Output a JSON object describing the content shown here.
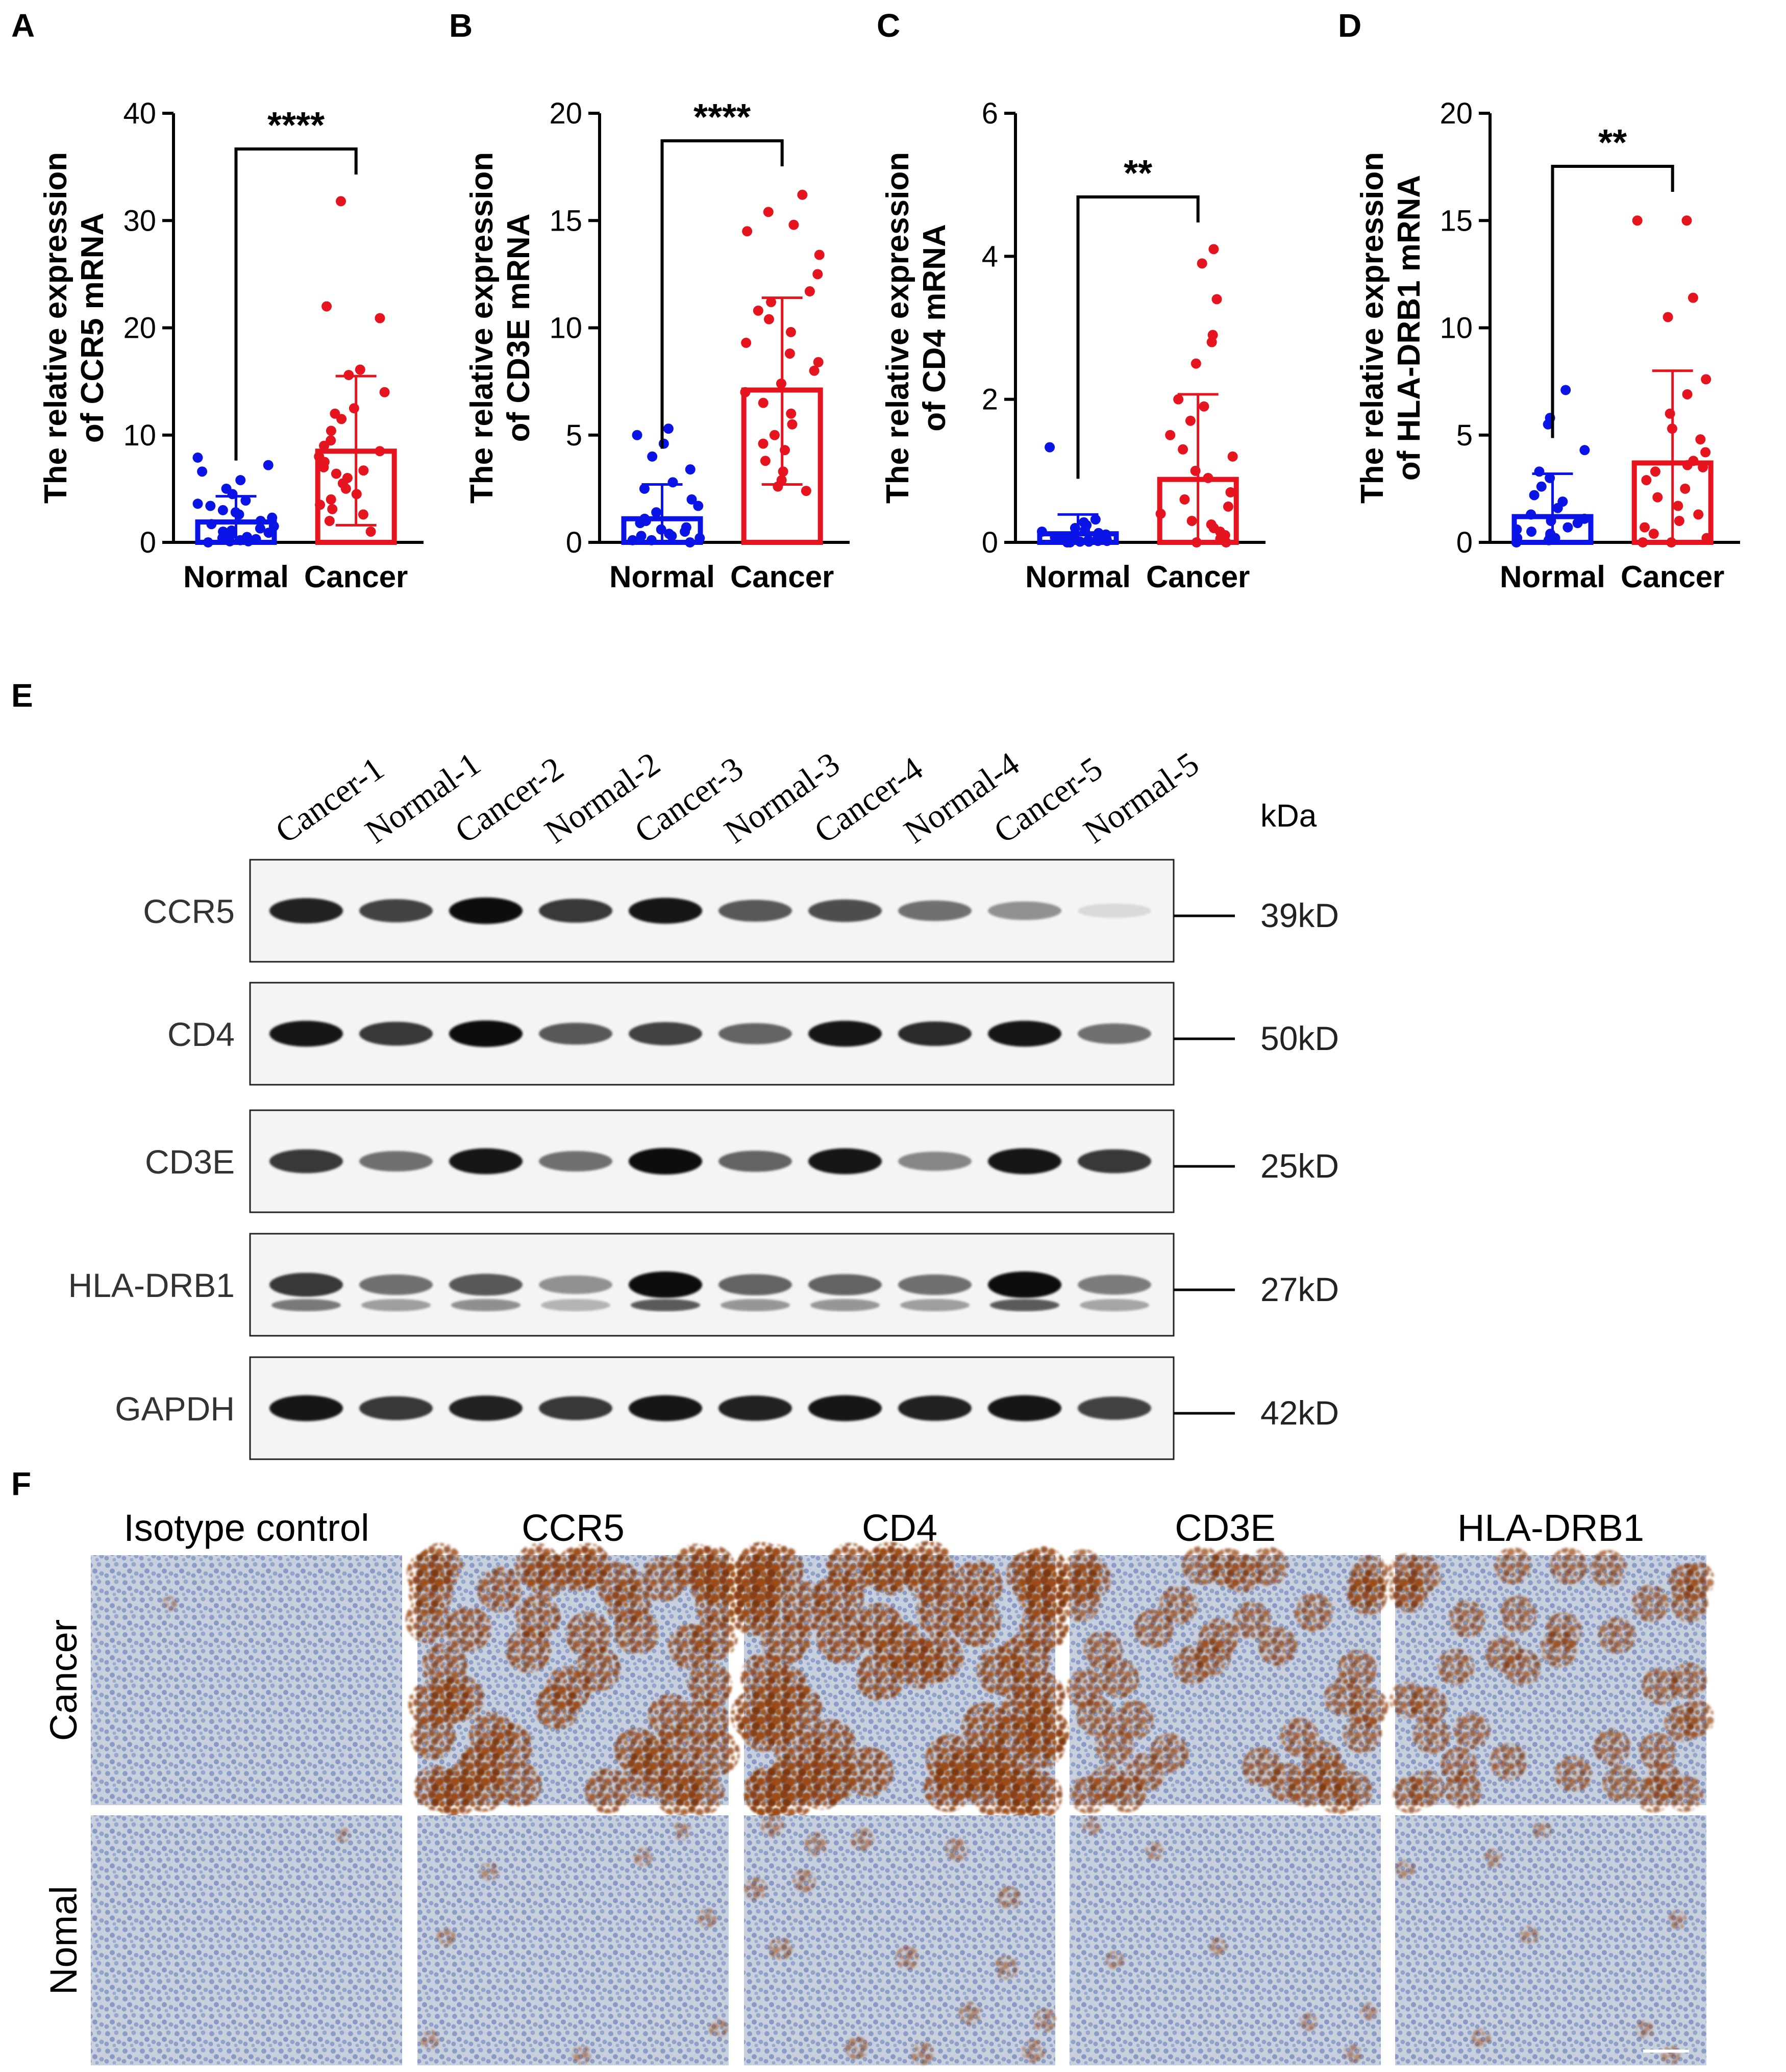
{
  "panels": {
    "A": "A",
    "B": "B",
    "C": "C",
    "D": "D",
    "E": "E",
    "F": "F"
  },
  "colors": {
    "normal": "#0a14e6",
    "cancer": "#e6141e",
    "axis": "#000000"
  },
  "chart_data": [
    {
      "type": "bar",
      "panel": "A",
      "ylabel_line1": "The relative expression",
      "ylabel_line2": "of CCR5 mRNA",
      "categories": [
        "Normal",
        "Cancer"
      ],
      "ylim": [
        0,
        40
      ],
      "yticks": [
        0,
        10,
        20,
        30,
        40
      ],
      "series": [
        {
          "category": "Normal",
          "mean": 1.9,
          "sd_upper": 4.3,
          "sd_lower": 0,
          "points": [
            7.9,
            7.2,
            6.6,
            5.8,
            5.0,
            4.5,
            3.9,
            3.4,
            3.0,
            2.6,
            2.3,
            2.0,
            1.7,
            1.5,
            1.3,
            1.1,
            0.9,
            0.7,
            0.5,
            0.4,
            0.3,
            0.2,
            0.1,
            0.1,
            0.0,
            1.0,
            2.8,
            3.6
          ]
        },
        {
          "category": "Cancer",
          "mean": 8.5,
          "sd_upper": 15.5,
          "sd_lower": 1.6,
          "points": [
            31.8,
            22.0,
            20.9,
            16.1,
            15.6,
            14.0,
            12.5,
            12.0,
            11.5,
            10.4,
            9.5,
            9.0,
            8.5,
            8.0,
            7.5,
            7.0,
            6.7,
            6.4,
            6.0,
            5.5,
            5.0,
            4.5,
            4.0,
            3.5,
            3.1,
            2.6,
            2.0,
            1.0
          ]
        }
      ],
      "significance": "****"
    },
    {
      "type": "bar",
      "panel": "B",
      "ylabel_line1": "The relative expression",
      "ylabel_line2": "of CD3E mRNA",
      "categories": [
        "Normal",
        "Cancer"
      ],
      "ylim": [
        0,
        20
      ],
      "yticks": [
        0,
        5,
        10,
        15,
        20
      ],
      "series": [
        {
          "category": "Normal",
          "mean": 1.1,
          "sd_upper": 2.7,
          "sd_lower": 0,
          "points": [
            5.3,
            5.0,
            4.6,
            4.0,
            3.4,
            2.8,
            2.5,
            2.0,
            1.7,
            1.4,
            1.1,
            0.9,
            0.7,
            0.5,
            0.4,
            0.3,
            0.2,
            0.1,
            0.0,
            0.1,
            0.3,
            0.6,
            1.0
          ]
        },
        {
          "category": "Cancer",
          "mean": 7.1,
          "sd_upper": 11.4,
          "sd_lower": 2.7,
          "points": [
            16.2,
            15.4,
            14.8,
            14.5,
            13.4,
            12.5,
            11.7,
            11.2,
            10.8,
            10.4,
            9.8,
            9.3,
            8.8,
            8.4,
            8.0,
            7.4,
            7.0,
            6.5,
            6.0,
            5.5,
            5.0,
            4.6,
            4.3,
            3.8,
            3.3,
            2.9,
            2.6,
            2.4
          ]
        }
      ],
      "significance": "****"
    },
    {
      "type": "bar",
      "panel": "C",
      "ylabel_line1": "The relative expression",
      "ylabel_line2": "of CD4 mRNA",
      "categories": [
        "Normal",
        "Cancer"
      ],
      "ylim": [
        0,
        6
      ],
      "yticks": [
        0,
        2,
        4,
        6
      ],
      "series": [
        {
          "category": "Normal",
          "mean": 0.12,
          "sd_upper": 0.39,
          "sd_lower": 0,
          "points": [
            1.33,
            0.32,
            0.28,
            0.24,
            0.2,
            0.17,
            0.15,
            0.13,
            0.11,
            0.09,
            0.08,
            0.07,
            0.06,
            0.05,
            0.04,
            0.03,
            0.02,
            0.02,
            0.01,
            0.01,
            0.0,
            0.0
          ]
        },
        {
          "category": "Cancer",
          "mean": 0.88,
          "sd_upper": 2.07,
          "sd_lower": 0,
          "points": [
            4.1,
            3.9,
            3.4,
            2.9,
            2.8,
            2.5,
            2.0,
            1.9,
            1.7,
            1.5,
            1.3,
            1.2,
            1.0,
            0.9,
            0.7,
            0.6,
            0.5,
            0.4,
            0.3,
            0.25,
            0.2,
            0.15,
            0.1,
            0.05,
            0.0,
            0.0
          ]
        }
      ],
      "significance": "**"
    },
    {
      "type": "bar",
      "panel": "D",
      "ylabel_line1": "The relative expression",
      "ylabel_line2": "of HLA-DRB1 mRNA",
      "categories": [
        "Normal",
        "Cancer"
      ],
      "ylim": [
        0,
        20
      ],
      "yticks": [
        0,
        5,
        10,
        15,
        20
      ],
      "series": [
        {
          "category": "Normal",
          "mean": 1.2,
          "sd_upper": 3.2,
          "sd_lower": 0,
          "points": [
            7.1,
            5.8,
            5.5,
            4.3,
            3.3,
            3.0,
            2.6,
            2.2,
            1.9,
            1.6,
            1.3,
            1.1,
            0.9,
            0.7,
            0.5,
            0.4,
            0.3,
            0.2,
            0.1,
            0.0,
            0.2,
            0.6,
            1.0
          ]
        },
        {
          "category": "Cancer",
          "mean": 3.7,
          "sd_upper": 8.0,
          "sd_lower": 0,
          "points": [
            15.0,
            15.0,
            11.4,
            10.5,
            7.6,
            6.9,
            6.0,
            5.3,
            4.8,
            4.2,
            3.8,
            3.6,
            3.3,
            2.9,
            2.5,
            2.1,
            1.7,
            1.3,
            1.0,
            0.7,
            0.4,
            0.2,
            0.0,
            0.0,
            3.5
          ]
        }
      ],
      "significance": "**"
    }
  ],
  "western_blot": {
    "lanes": [
      "Cancer-1",
      "Normal-1",
      "Cancer-2",
      "Normal-2",
      "Cancer-3",
      "Normal-3",
      "Cancer-4",
      "Normal-4",
      "Cancer-5",
      "Normal-5"
    ],
    "unit_label": "kDa",
    "rows": [
      {
        "protein": "CCR5",
        "size": "39kD",
        "intensities": [
          0.9,
          0.75,
          1.0,
          0.8,
          0.95,
          0.65,
          0.7,
          0.55,
          0.4,
          0.08
        ]
      },
      {
        "protein": "CD4",
        "size": "50kD",
        "intensities": [
          0.95,
          0.8,
          1.0,
          0.65,
          0.75,
          0.6,
          0.95,
          0.85,
          0.95,
          0.55
        ]
      },
      {
        "protein": "CD3E",
        "size": "25kD",
        "intensities": [
          0.8,
          0.55,
          0.95,
          0.55,
          1.0,
          0.6,
          0.95,
          0.45,
          0.95,
          0.8
        ]
      },
      {
        "protein": "HLA-DRB1",
        "size": "27kD",
        "intensities": [
          0.8,
          0.55,
          0.65,
          0.4,
          1.0,
          0.6,
          0.6,
          0.55,
          1.0,
          0.5
        ]
      },
      {
        "protein": "GAPDH",
        "size": "42kD",
        "intensities": [
          0.95,
          0.8,
          0.9,
          0.8,
          0.95,
          0.9,
          0.95,
          0.9,
          0.95,
          0.75
        ]
      }
    ]
  },
  "ihc": {
    "columns": [
      "Isotype control",
      "CCR5",
      "CD4",
      "CD3E",
      "HLA-DRB1"
    ],
    "rows": [
      "Cancer",
      "Nomal"
    ],
    "staining_level": [
      [
        0.02,
        0.75,
        0.85,
        0.6,
        0.55
      ],
      [
        0.02,
        0.12,
        0.22,
        0.1,
        0.12
      ]
    ]
  }
}
